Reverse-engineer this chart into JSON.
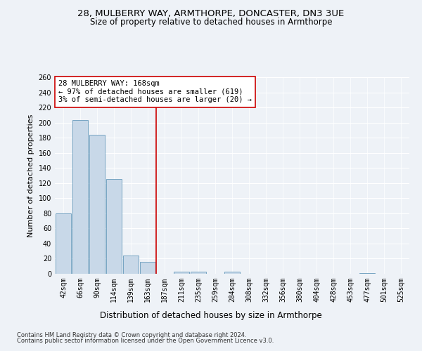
{
  "title1": "28, MULBERRY WAY, ARMTHORPE, DONCASTER, DN3 3UE",
  "title2": "Size of property relative to detached houses in Armthorpe",
  "xlabel": "Distribution of detached houses by size in Armthorpe",
  "ylabel": "Number of detached properties",
  "bins": [
    "42sqm",
    "66sqm",
    "90sqm",
    "114sqm",
    "139sqm",
    "163sqm",
    "187sqm",
    "211sqm",
    "235sqm",
    "259sqm",
    "284sqm",
    "308sqm",
    "332sqm",
    "356sqm",
    "380sqm",
    "404sqm",
    "428sqm",
    "453sqm",
    "477sqm",
    "501sqm",
    "525sqm"
  ],
  "values": [
    80,
    203,
    184,
    125,
    24,
    16,
    0,
    3,
    3,
    0,
    3,
    0,
    0,
    0,
    0,
    0,
    0,
    0,
    1,
    0,
    0
  ],
  "bar_color": "#c8d8e8",
  "bar_edge_color": "#6699bb",
  "highlight_bin_index": 5,
  "highlight_color": "#cc0000",
  "annotation_text": "28 MULBERRY WAY: 168sqm\n← 97% of detached houses are smaller (619)\n3% of semi-detached houses are larger (20) →",
  "annotation_box_color": "#ffffff",
  "annotation_box_edge": "#cc0000",
  "ylim": [
    0,
    260
  ],
  "yticks": [
    0,
    20,
    40,
    60,
    80,
    100,
    120,
    140,
    160,
    180,
    200,
    220,
    240,
    260
  ],
  "footer1": "Contains HM Land Registry data © Crown copyright and database right 2024.",
  "footer2": "Contains public sector information licensed under the Open Government Licence v3.0.",
  "bg_color": "#eef2f7",
  "plot_bg_color": "#eef2f7",
  "title1_fontsize": 9.5,
  "title2_fontsize": 8.5,
  "xlabel_fontsize": 8.5,
  "ylabel_fontsize": 8,
  "tick_fontsize": 7,
  "annotation_fontsize": 7.5,
  "footer_fontsize": 6
}
